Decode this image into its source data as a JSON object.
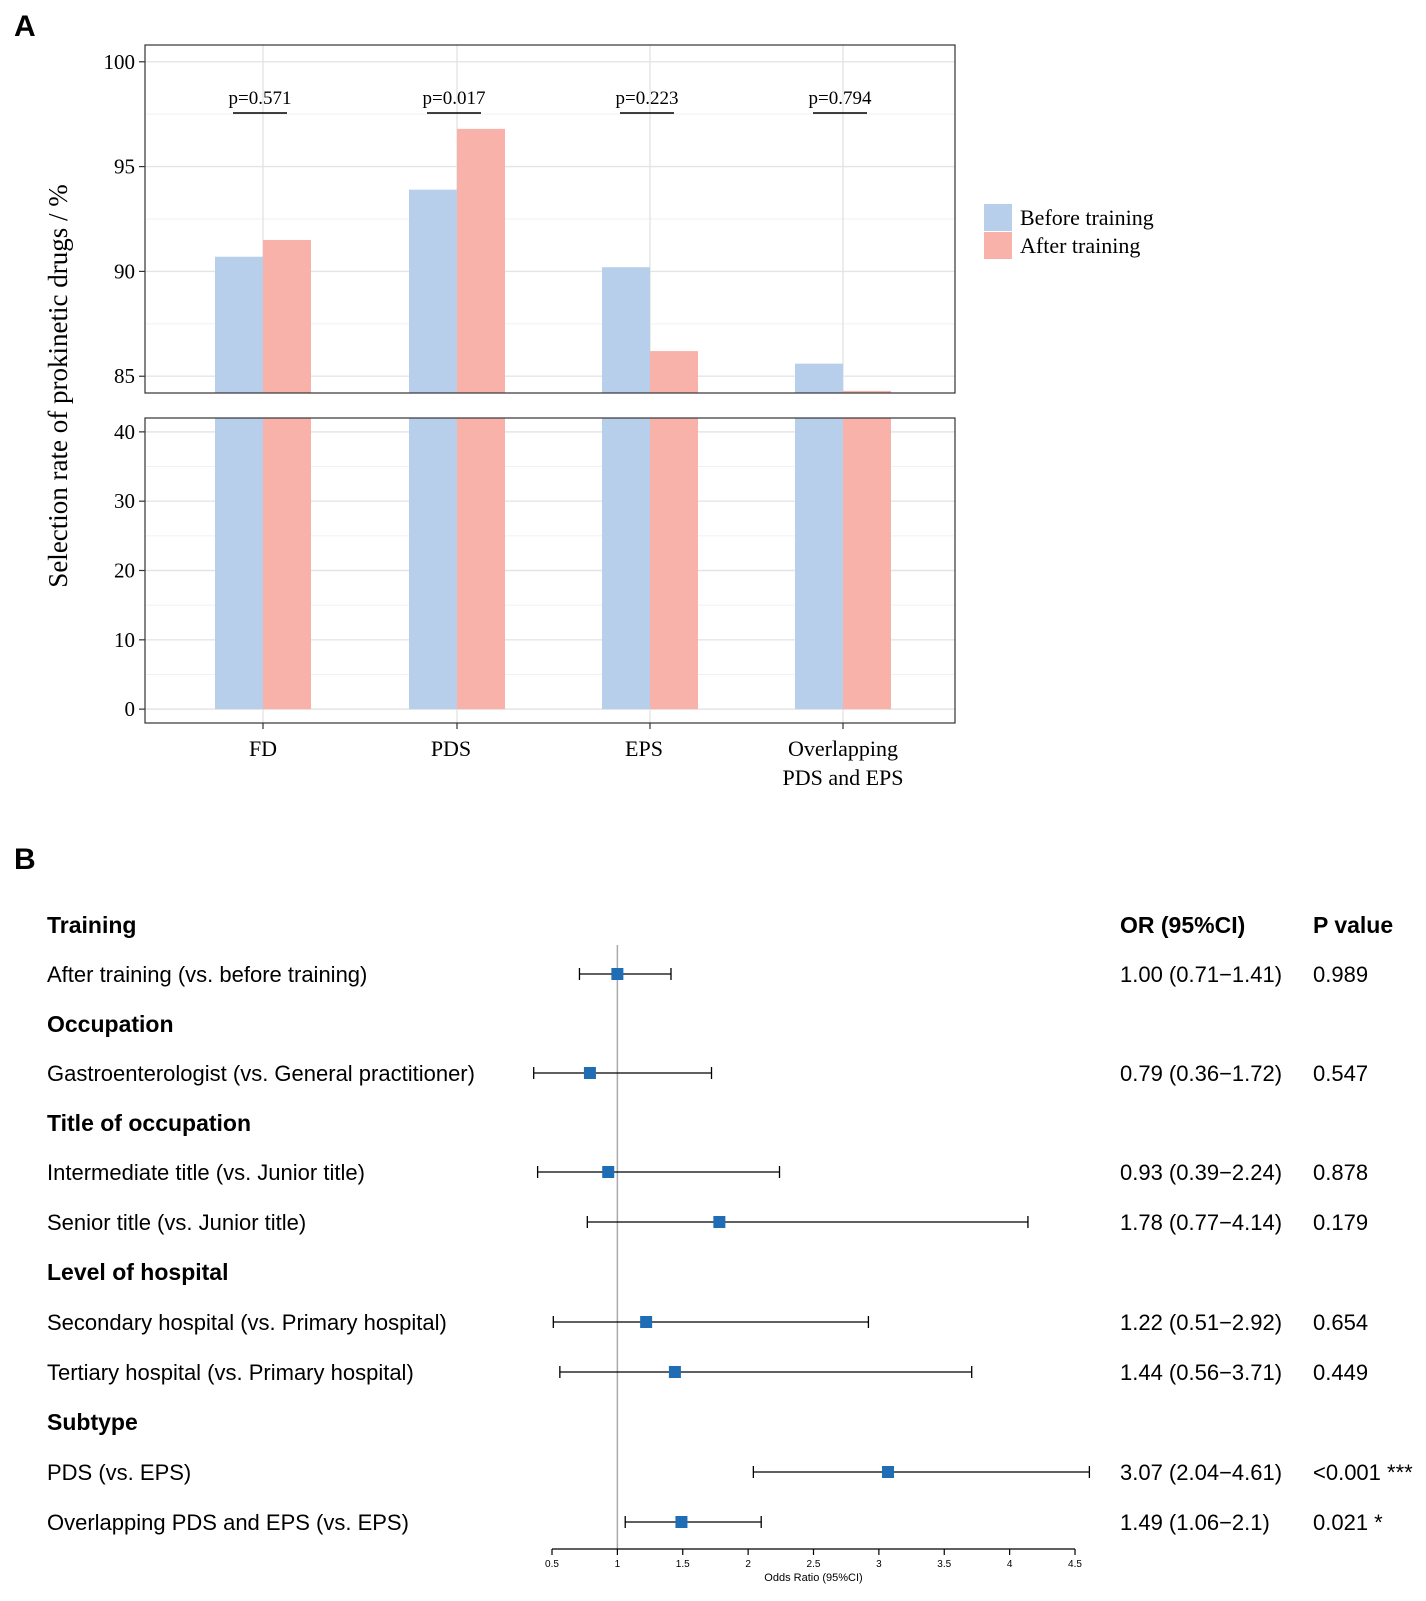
{
  "panel_a_letter": "A",
  "panel_b_letter": "B",
  "chart_data": [
    {
      "type": "bar",
      "title": "",
      "ylabel": "Selection rate of prokinetic drugs / %",
      "xlabel": "",
      "categories": [
        "FD",
        "PDS",
        "EPS",
        "Overlapping PDS and EPS"
      ],
      "category_lines": [
        [
          "FD"
        ],
        [
          "PDS"
        ],
        [
          "EPS"
        ],
        [
          "Overlapping",
          "PDS and EPS"
        ]
      ],
      "series": [
        {
          "name": "Before training",
          "color": "#b7cfea",
          "values": [
            90.7,
            93.9,
            90.2,
            85.6
          ]
        },
        {
          "name": "After training",
          "color": "#f9b2aa",
          "values": [
            91.5,
            96.8,
            86.2,
            84.3
          ]
        }
      ],
      "broken_axis": {
        "upper": {
          "ylim": [
            84.2,
            100.8
          ],
          "ticks": [
            "85",
            "90",
            "95",
            "100"
          ],
          "tick_values": [
            85,
            90,
            95,
            100
          ]
        },
        "lower": {
          "ylim": [
            -2,
            42
          ],
          "ticks": [
            "0",
            "10",
            "20",
            "30",
            "40"
          ],
          "tick_values": [
            0,
            10,
            20,
            30,
            40
          ]
        }
      },
      "p_values": [
        "p=0.571",
        "p=0.017",
        "p=0.223",
        "p=0.794"
      ],
      "legend": {
        "position": "right",
        "entries": [
          "Before training",
          "After training"
        ]
      },
      "grid": true
    },
    {
      "type": "forest",
      "xlabel": "Odds Ratio (95%CI)",
      "xlim": [
        0.5,
        4.5
      ],
      "ticks": [
        "0.5",
        "1",
        "1.5",
        "2",
        "2.5",
        "3",
        "3.5",
        "4",
        "4.5"
      ],
      "tick_values": [
        0.5,
        1,
        1.5,
        2,
        2.5,
        3,
        3.5,
        4,
        4.5
      ],
      "reference_line": 1,
      "marker_color": "#1f6db5",
      "column_headers": {
        "or": "OR (95%CI)",
        "p": "P value"
      },
      "rows": [
        {
          "kind": "header",
          "label": "Training"
        },
        {
          "kind": "item",
          "label": "After training (vs. before training)",
          "or": 1.0,
          "lo": 0.71,
          "hi": 1.41,
          "or_text": "1.00 (0.71−1.41)",
          "p_text": "0.989"
        },
        {
          "kind": "header",
          "label": "Occupation"
        },
        {
          "kind": "item",
          "label": "Gastroenterologist (vs. General practitioner)",
          "or": 0.79,
          "lo": 0.36,
          "hi": 1.72,
          "or_text": "0.79 (0.36−1.72)",
          "p_text": "0.547"
        },
        {
          "kind": "header",
          "label": "Title of occupation"
        },
        {
          "kind": "item",
          "label": "Intermediate title (vs. Junior title)",
          "or": 0.93,
          "lo": 0.39,
          "hi": 2.24,
          "or_text": "0.93 (0.39−2.24)",
          "p_text": "0.878"
        },
        {
          "kind": "item",
          "label": "Senior title (vs. Junior title)",
          "or": 1.78,
          "lo": 0.77,
          "hi": 4.14,
          "or_text": "1.78 (0.77−4.14)",
          "p_text": "0.179"
        },
        {
          "kind": "header",
          "label": "Level of hospital"
        },
        {
          "kind": "item",
          "label": "Secondary hospital (vs. Primary hospital)",
          "or": 1.22,
          "lo": 0.51,
          "hi": 2.92,
          "or_text": "1.22 (0.51−2.92)",
          "p_text": "0.654"
        },
        {
          "kind": "item",
          "label": "Tertiary hospital (vs. Primary hospital)",
          "or": 1.44,
          "lo": 0.56,
          "hi": 3.71,
          "or_text": "1.44 (0.56−3.71)",
          "p_text": "0.449"
        },
        {
          "kind": "header",
          "label": "Subtype"
        },
        {
          "kind": "item",
          "label": "PDS (vs. EPS)",
          "or": 3.07,
          "lo": 2.04,
          "hi": 4.61,
          "or_text": "3.07 (2.04−4.61)",
          "p_text": "<0.001 ***"
        },
        {
          "kind": "item",
          "label": "Overlapping PDS and EPS  (vs. EPS)",
          "or": 1.49,
          "lo": 1.06,
          "hi": 2.1,
          "or_text": "1.49 (1.06−2.1)",
          "p_text": "0.021 *"
        }
      ]
    }
  ]
}
